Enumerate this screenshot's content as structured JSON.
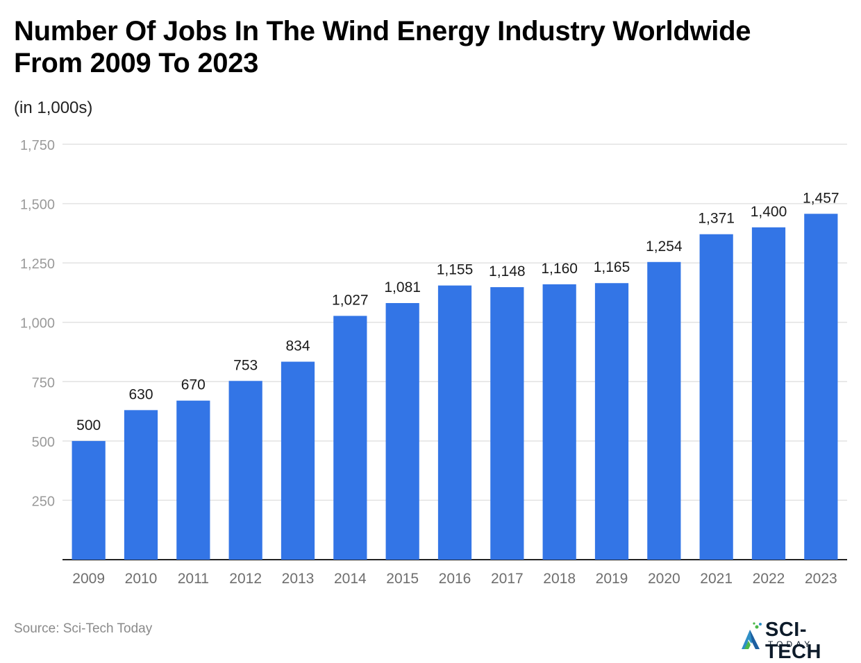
{
  "header": {
    "title_line1": "Number Of Jobs In The Wind Energy Industry Worldwide",
    "title_line2": "From 2009 To 2023",
    "subtitle": "(in 1,000s)"
  },
  "footer": {
    "source": "Source: Sci-Tech Today",
    "logo_name": "SCI-TECH",
    "logo_sub": "TODAY"
  },
  "chart_data": {
    "type": "bar",
    "title": "Number Of Jobs In The Wind Energy Industry Worldwide From 2009 To 2023",
    "subtitle": "(in 1,000s)",
    "categories": [
      "2009",
      "2010",
      "2011",
      "2012",
      "2013",
      "2014",
      "2015",
      "2016",
      "2017",
      "2018",
      "2019",
      "2020",
      "2021",
      "2022",
      "2023"
    ],
    "values": [
      500,
      630,
      670,
      753,
      834,
      1027,
      1081,
      1155,
      1148,
      1160,
      1165,
      1254,
      1371,
      1400,
      1457
    ],
    "value_labels": [
      "500",
      "630",
      "670",
      "753",
      "834",
      "1,027",
      "1,081",
      "1,155",
      "1,148",
      "1,160",
      "1,165",
      "1,254",
      "1,371",
      "1,400",
      "1,457"
    ],
    "ylim": [
      0,
      1750
    ],
    "yticks": [
      250,
      500,
      750,
      1000,
      1250,
      1500,
      1750
    ],
    "ytick_labels": [
      "250",
      "500",
      "750",
      "1,000",
      "1,250",
      "1,500",
      "1,750"
    ],
    "grid": true,
    "bar_color": "#3375e6",
    "grid_color": "#e2e2e2",
    "axis_color": "#222222",
    "tick_label_color": "#9a9a9a"
  }
}
